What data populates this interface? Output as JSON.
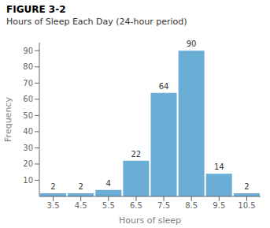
{
  "chart_data": {
    "type": "bar",
    "title": "Hours of Sleep Each Day (24-hour period)",
    "annotations": [
      "FIGURE 3-2"
    ],
    "x_label": "Hours of sleep",
    "y_label": "Frequency",
    "categories": [
      "3.5",
      "4.5",
      "5.5",
      "6.5",
      "7.5",
      "8.5",
      "9.5",
      "10.5"
    ],
    "values": [
      2,
      2,
      4,
      22,
      64,
      90,
      14,
      2
    ],
    "color": "#6aaed6",
    "ylim": [
      0,
      95
    ],
    "yticks": [
      10,
      20,
      30,
      40,
      50,
      60,
      70,
      80,
      90
    ],
    "grid": false,
    "data_labels": true
  }
}
